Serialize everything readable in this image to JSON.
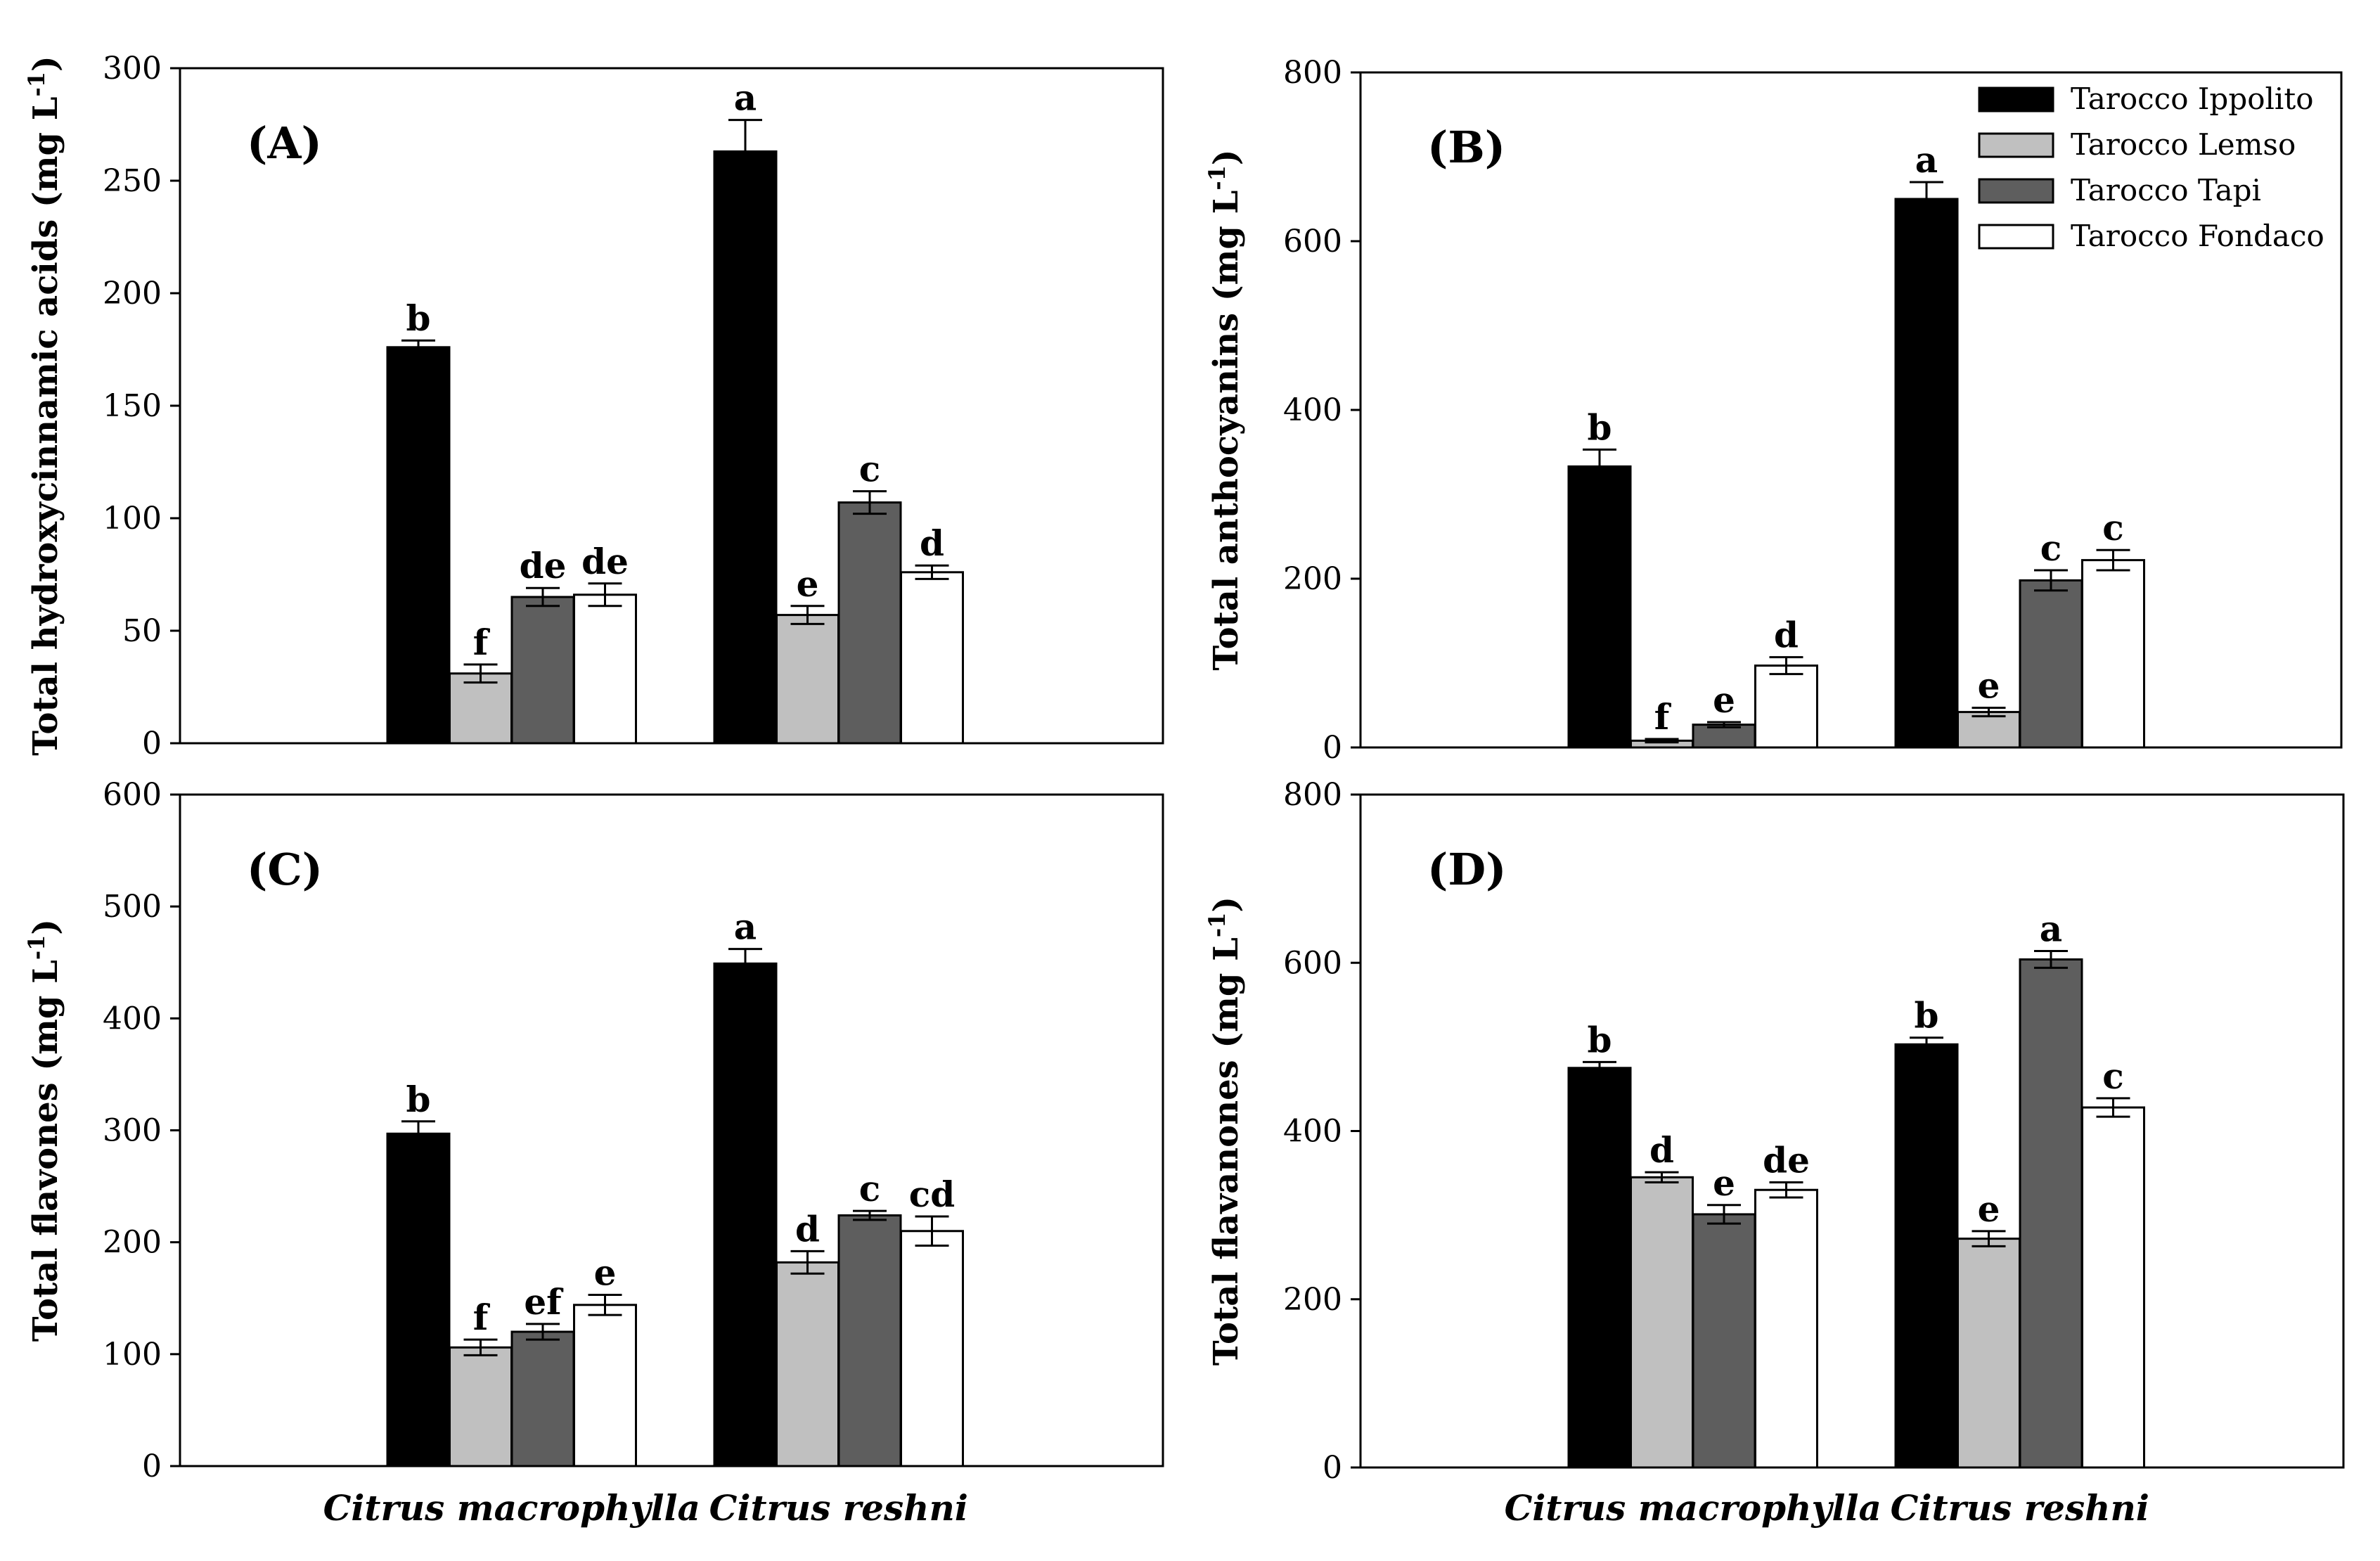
{
  "legend": {
    "entries": [
      {
        "name": "Tarocco Ippolito",
        "color": "#000000"
      },
      {
        "name": "Tarocco Lemso",
        "color": "#c0c0c0"
      },
      {
        "name": "Tarocco Tapi",
        "color": "#5e5e5e"
      },
      {
        "name": "Tarocco Fondaco",
        "color": "#ffffff"
      }
    ]
  },
  "chart_data": [
    {
      "type": "bar",
      "panel": "(A)",
      "ylabel": "Total hydroxycinnamic acids (mg L-1)",
      "ylabel_main": "Total hydroxycinnamic acids (mg L",
      "ylabel_sup": "-1",
      "ylabel_close": ")",
      "ylim": [
        0,
        300
      ],
      "yticks": [
        0,
        50,
        100,
        150,
        200,
        250,
        300
      ],
      "categories": [
        "Citrus macrophylla",
        "Citrus reshni"
      ],
      "series": [
        {
          "name": "Tarocco Ippolito",
          "values": [
            176,
            263
          ],
          "errors": [
            3,
            14
          ],
          "letters": [
            "b",
            "a"
          ]
        },
        {
          "name": "Tarocco Lemso",
          "values": [
            31,
            57
          ],
          "errors": [
            4,
            4
          ],
          "letters": [
            "f",
            "e"
          ]
        },
        {
          "name": "Tarocco Tapi",
          "values": [
            65,
            107
          ],
          "errors": [
            4,
            5
          ],
          "letters": [
            "de",
            "c"
          ]
        },
        {
          "name": "Tarocco Fondaco",
          "values": [
            66,
            76
          ],
          "errors": [
            5,
            3
          ],
          "letters": [
            "de",
            "d"
          ]
        }
      ]
    },
    {
      "type": "bar",
      "panel": "(B)",
      "ylabel": "Total anthocyanins (mg L-1)",
      "ylabel_main": "Total anthocyanins (mg L",
      "ylabel_sup": "-1",
      "ylabel_close": ")",
      "ylim": [
        0,
        800
      ],
      "yticks": [
        0,
        200,
        400,
        600,
        800
      ],
      "categories": [
        "Citrus macrophylla",
        "Citrus reshni"
      ],
      "series": [
        {
          "name": "Tarocco Ippolito",
          "values": [
            333,
            650
          ],
          "errors": [
            20,
            20
          ],
          "letters": [
            "b",
            "a"
          ]
        },
        {
          "name": "Tarocco Lemso",
          "values": [
            8,
            42
          ],
          "errors": [
            2,
            5
          ],
          "letters": [
            "f",
            "e"
          ]
        },
        {
          "name": "Tarocco Tapi",
          "values": [
            27,
            198
          ],
          "errors": [
            3,
            12
          ],
          "letters": [
            "e",
            "c"
          ]
        },
        {
          "name": "Tarocco Fondaco",
          "values": [
            97,
            222
          ],
          "errors": [
            10,
            12
          ],
          "letters": [
            "d",
            "c"
          ]
        }
      ]
    },
    {
      "type": "bar",
      "panel": "(C)",
      "ylabel": "Total flavones (mg L-1)",
      "ylabel_main": "Total flavones (mg L",
      "ylabel_sup": "-1",
      "ylabel_close": ")",
      "ylim": [
        0,
        600
      ],
      "yticks": [
        0,
        100,
        200,
        300,
        400,
        500,
        600
      ],
      "categories": [
        "Citrus macrophylla",
        "Citrus reshni"
      ],
      "series": [
        {
          "name": "Tarocco Ippolito",
          "values": [
            297,
            449
          ],
          "errors": [
            11,
            13
          ],
          "letters": [
            "b",
            "a"
          ]
        },
        {
          "name": "Tarocco Lemso",
          "values": [
            106,
            182
          ],
          "errors": [
            7,
            10
          ],
          "letters": [
            "f",
            "d"
          ]
        },
        {
          "name": "Tarocco Tapi",
          "values": [
            120,
            224
          ],
          "errors": [
            7,
            4
          ],
          "letters": [
            "ef",
            "c"
          ]
        },
        {
          "name": "Tarocco Fondaco",
          "values": [
            144,
            210
          ],
          "errors": [
            9,
            13
          ],
          "letters": [
            "e",
            "cd"
          ]
        }
      ]
    },
    {
      "type": "bar",
      "panel": "(D)",
      "ylabel": "Total flavanones (mg L-1)",
      "ylabel_main": "Total flavanones (mg L",
      "ylabel_sup": "-1",
      "ylabel_close": ")",
      "ylim": [
        0,
        800
      ],
      "yticks": [
        0,
        200,
        400,
        600,
        800
      ],
      "categories": [
        "Citrus macrophylla",
        "Citrus reshni"
      ],
      "series": [
        {
          "name": "Tarocco Ippolito",
          "values": [
            475,
            503
          ],
          "errors": [
            7,
            8
          ],
          "letters": [
            "b",
            "b"
          ]
        },
        {
          "name": "Tarocco Lemso",
          "values": [
            345,
            272
          ],
          "errors": [
            6,
            9
          ],
          "letters": [
            "d",
            "e"
          ]
        },
        {
          "name": "Tarocco Tapi",
          "values": [
            301,
            604
          ],
          "errors": [
            11,
            10
          ],
          "letters": [
            "e",
            "a"
          ]
        },
        {
          "name": "Tarocco Fondaco",
          "values": [
            330,
            428
          ],
          "errors": [
            9,
            11
          ],
          "letters": [
            "de",
            "c"
          ]
        }
      ]
    }
  ]
}
